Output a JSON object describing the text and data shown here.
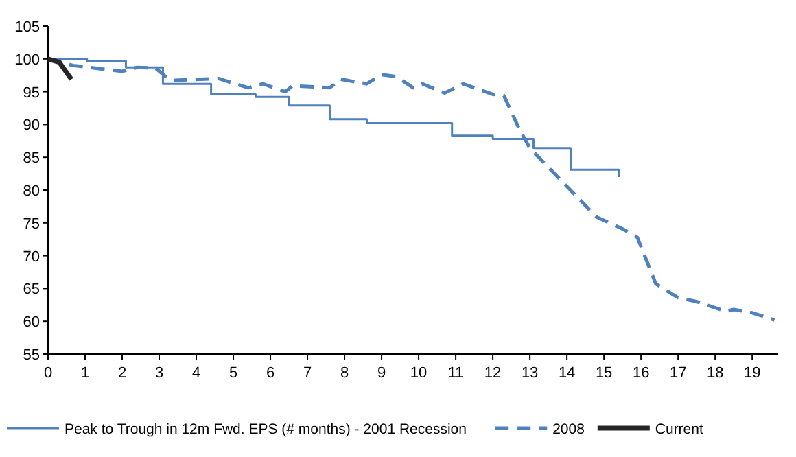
{
  "chart_data": {
    "type": "line",
    "xlim": [
      0,
      19.7
    ],
    "xticks": [
      0,
      1,
      2,
      3,
      4,
      5,
      6,
      7,
      8,
      9,
      10,
      11,
      12,
      13,
      14,
      15,
      16,
      17,
      18,
      19
    ],
    "ylim": [
      55,
      105
    ],
    "yticks": [
      55,
      60,
      65,
      70,
      75,
      80,
      85,
      90,
      95,
      100,
      105
    ],
    "grid": false,
    "legend": "bottom",
    "series": [
      {
        "name": "Peak to Trough in 12m Fwd. EPS (# months) - 2001 Recession",
        "type": "step",
        "color": "#4f81bd",
        "line_style": "solid",
        "x": [
          0,
          1.05,
          2.1,
          3.1,
          4.4,
          5.6,
          6.5,
          7.6,
          8.6,
          10.9,
          12.0,
          13.1,
          14.1,
          15.1,
          15.4
        ],
        "values": [
          100,
          99.7,
          98.7,
          96.2,
          94.6,
          94.2,
          92.9,
          90.8,
          90.2,
          88.3,
          87.8,
          86.4,
          83.1,
          83.1,
          82.0
        ]
      },
      {
        "name": "2008",
        "type": "line",
        "color": "#4f81bd",
        "line_style": "dashed",
        "x": [
          0,
          0.67,
          2.0,
          2.4,
          2.9,
          3.3,
          4.6,
          5.4,
          5.8,
          6.4,
          6.6,
          7.6,
          7.9,
          8.6,
          9.0,
          9.4,
          9.85,
          10.1,
          10.7,
          11.2,
          12.0,
          12.3,
          12.7,
          13.0,
          14.8,
          15.5,
          15.9,
          16.4,
          17.0,
          17.5,
          18.3,
          18.5,
          19.0,
          19.6
        ],
        "values": [
          100,
          99.0,
          98.1,
          98.7,
          98.6,
          96.7,
          97.0,
          95.6,
          96.2,
          95.0,
          95.9,
          95.6,
          96.9,
          96.2,
          97.6,
          97.3,
          95.6,
          96.2,
          94.8,
          96.2,
          94.6,
          94.4,
          89.5,
          86.4,
          75.9,
          74.1,
          72.8,
          65.7,
          63.6,
          63.0,
          61.5,
          61.8,
          61.3,
          60.2
        ]
      },
      {
        "name": "Current",
        "type": "line",
        "color": "#262626",
        "line_style": "solid",
        "x": [
          0,
          0.3,
          0.63
        ],
        "values": [
          100,
          99.5,
          96.9
        ]
      }
    ]
  }
}
